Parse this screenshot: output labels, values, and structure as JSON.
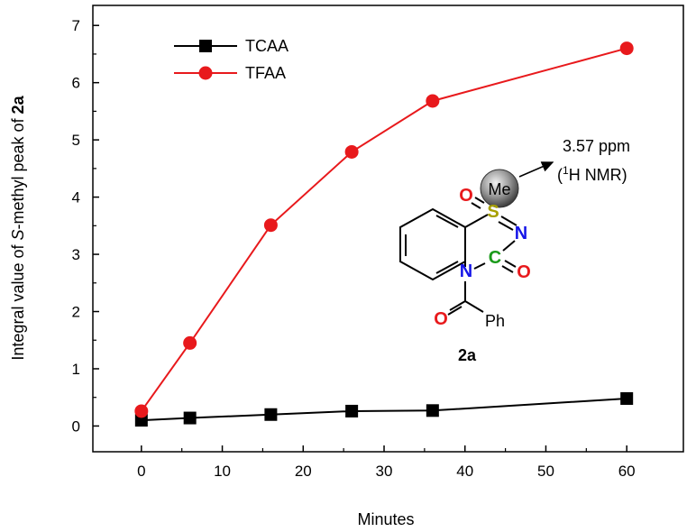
{
  "chart_data": {
    "type": "line",
    "xlabel": "Minutes",
    "ylabel_parts": [
      "Integral value of ",
      "S",
      "-methyl peak of ",
      "2a"
    ],
    "xlim": [
      -6,
      67
    ],
    "ylim": [
      -0.45,
      7.35
    ],
    "xticks": [
      0,
      10,
      20,
      30,
      40,
      50,
      60
    ],
    "yticks": [
      0,
      1,
      2,
      3,
      4,
      5,
      6,
      7
    ],
    "grid": false,
    "legend_position": "top-left",
    "series": [
      {
        "name": "TCAA",
        "color": "#000000",
        "marker": "square",
        "x": [
          0,
          6,
          16,
          26,
          36,
          60
        ],
        "y": [
          0.1,
          0.14,
          0.2,
          0.26,
          0.27,
          0.48
        ]
      },
      {
        "name": "TFAA",
        "color": "#e8191c",
        "marker": "circle",
        "x": [
          0,
          6,
          16,
          26,
          36,
          60
        ],
        "y": [
          0.26,
          1.45,
          3.51,
          4.79,
          5.68,
          6.6
        ]
      }
    ],
    "annotation": {
      "label_line1": "3.57 ppm",
      "label_line2_pre": "(",
      "label_line2_sup": "1",
      "label_line2_post": "H NMR)",
      "methyl_label": "Me",
      "compound_label": "2a",
      "atoms": {
        "S": "S",
        "N_ring": "N",
        "N_amide": "N",
        "C": "C",
        "O_sulfonyl": "O",
        "O_carbonyl": "O",
        "O_benzoyl": "O",
        "Ph": "Ph"
      },
      "colors": {
        "S": "#a8a000",
        "N": "#1515e8",
        "C": "#1a9a1a",
        "O": "#e8191c"
      }
    }
  }
}
